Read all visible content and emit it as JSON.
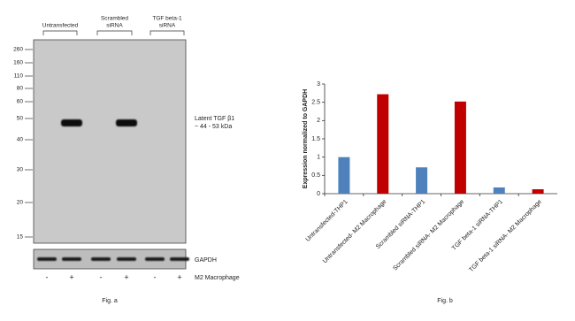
{
  "blot": {
    "headers": [
      [
        "Untransfected"
      ],
      [
        "Scrambled",
        "siRNA"
      ],
      [
        "TGF beta-1",
        "siRNA"
      ]
    ],
    "markers": [
      "260",
      "160",
      "110",
      "80",
      "60",
      "50",
      "40",
      "30",
      "20",
      "15"
    ],
    "band_label": [
      "Latent TGF β1",
      "~ 44 - 53 kDa"
    ],
    "loading_label": "GAPDH",
    "lane_signs": [
      "-",
      "+",
      "-",
      "+",
      "-",
      "+"
    ],
    "treatment": "M2 Macrophage",
    "caption": "Fig. a"
  },
  "chart_data": {
    "type": "bar",
    "ylabel": "Expression normalized to GAPDH",
    "categories": [
      "Untransfected-THP1",
      "Untransfected- M2 Macrophage",
      "Scrambled siRNA-THP1",
      "Scrambled siRNA- M2 Macrophage",
      "TGF beta-1 siRNA-THP1",
      "TGF beta-1 siRNA- M2 Macrophage"
    ],
    "values": [
      1.0,
      2.72,
      0.72,
      2.52,
      0.17,
      0.12
    ],
    "colors": [
      "#4f81bd",
      "#c00000",
      "#4f81bd",
      "#c00000",
      "#4f81bd",
      "#c00000"
    ],
    "ylim": [
      0,
      3
    ],
    "yticks": [
      0,
      0.5,
      1,
      1.5,
      2,
      2.5,
      3
    ],
    "caption": "Fig. b"
  }
}
